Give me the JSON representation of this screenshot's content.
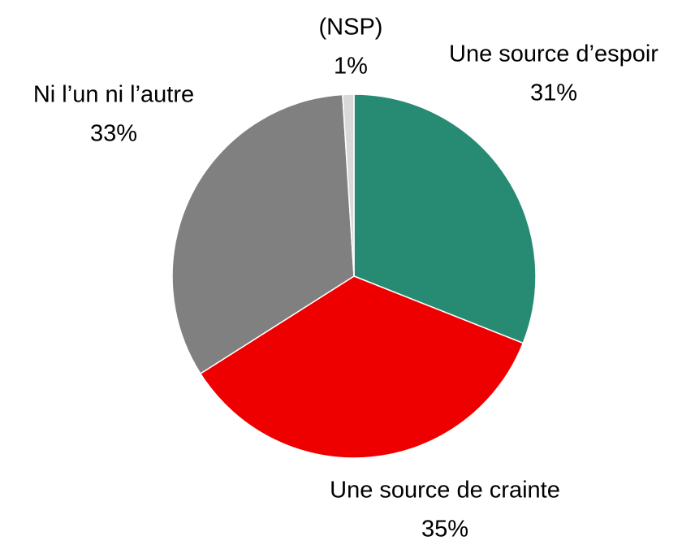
{
  "chart_data": {
    "type": "pie",
    "categories": [
      "Une source d’espoir",
      "Une source de crainte",
      "Ni l’un ni l’autre",
      "(NSP)"
    ],
    "values": [
      31,
      35,
      33,
      1
    ],
    "value_labels": [
      "31%",
      "35%",
      "33%",
      "1%"
    ],
    "colors": [
      "#278b73",
      "#ee0000",
      "#808080",
      "#d9d9d9"
    ]
  }
}
